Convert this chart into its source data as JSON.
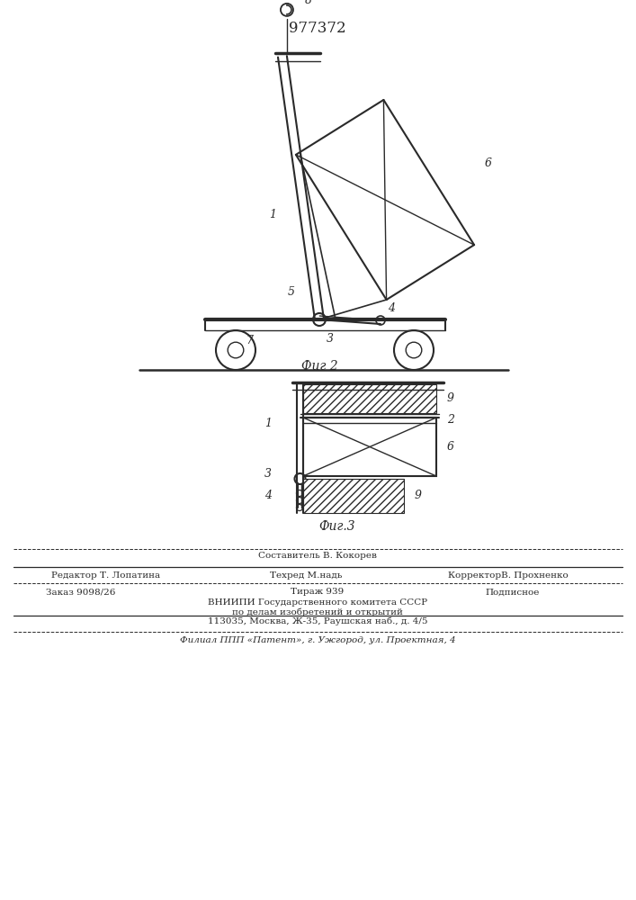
{
  "title": "977372",
  "fig2_caption": "Фиг 2",
  "fig3_caption": "Фиг.3",
  "line_color": "#2a2a2a",
  "footer": {
    "line1_center": "Составитель В. Кокорев",
    "line2_left": "Редактор Т. Лопатина",
    "line2_center": "Техред М.надь",
    "line2_right": "КорректорВ. Прохненко",
    "line3_left": "Заказ 9098/26",
    "line3_center": "Тираж 939",
    "line3_right": "Подписное",
    "line4": "ВНИИПИ Государственного комитета СССР",
    "line5": "по делам изобретений и открытий",
    "line6": "113035, Москва, Ж-35, Раушская наб., д. 4/5",
    "line7": "Филиал ППП «Патент», г. Ужгород, ул. Проектная, 4"
  }
}
